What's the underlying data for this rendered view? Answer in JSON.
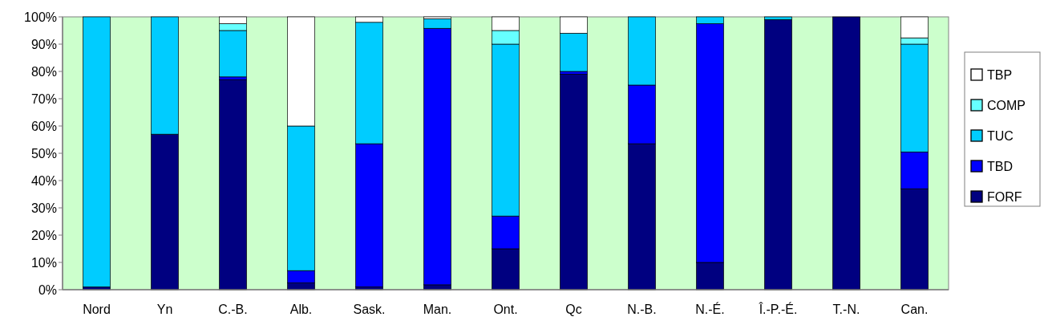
{
  "chart_data": {
    "type": "bar",
    "stacked": true,
    "categories": [
      "Nord",
      "Yn",
      "C.-B.",
      "Alb.",
      "Sask.",
      "Man.",
      "Ont.",
      "Qc",
      "N.-B.",
      "N.-É.",
      "Î.-P.-É.",
      "T.-N.",
      "Can."
    ],
    "series": [
      {
        "name": "FORF",
        "color": "#000080",
        "values": [
          1,
          57,
          77,
          2.5,
          1,
          1.8,
          15,
          79,
          53.5,
          10,
          99,
          100,
          37
        ]
      },
      {
        "name": "TBD",
        "color": "#0000ff",
        "values": [
          0,
          0,
          1,
          4.5,
          52.5,
          94,
          12,
          1,
          21.5,
          87.5,
          0,
          0,
          13.5
        ]
      },
      {
        "name": "TUC",
        "color": "#00ccff",
        "values": [
          99,
          43,
          17,
          53,
          44.5,
          3.5,
          63,
          14,
          25,
          2.5,
          1,
          0,
          39.5
        ]
      },
      {
        "name": "COMP",
        "color": "#66ffff",
        "values": [
          0,
          0,
          2.5,
          0,
          0,
          0,
          5,
          0,
          0,
          0,
          0,
          0,
          2.3
        ]
      },
      {
        "name": "TBP",
        "color": "#ffffff",
        "values": [
          0,
          0,
          2.5,
          40,
          2,
          0.7,
          5,
          6,
          0,
          0,
          0,
          0,
          7.7
        ]
      }
    ],
    "ylim": [
      0,
      100
    ],
    "yticks": [
      {
        "value": 0,
        "label": "0%"
      },
      {
        "value": 10,
        "label": "10%"
      },
      {
        "value": 20,
        "label": "20%"
      },
      {
        "value": 30,
        "label": "30%"
      },
      {
        "value": 40,
        "label": "40%"
      },
      {
        "value": 50,
        "label": "50%"
      },
      {
        "value": 60,
        "label": "60%"
      },
      {
        "value": 70,
        "label": "70%"
      },
      {
        "value": 80,
        "label": "80%"
      },
      {
        "value": 90,
        "label": "90%"
      },
      {
        "value": 100,
        "label": "100%"
      }
    ],
    "legend": "right"
  }
}
